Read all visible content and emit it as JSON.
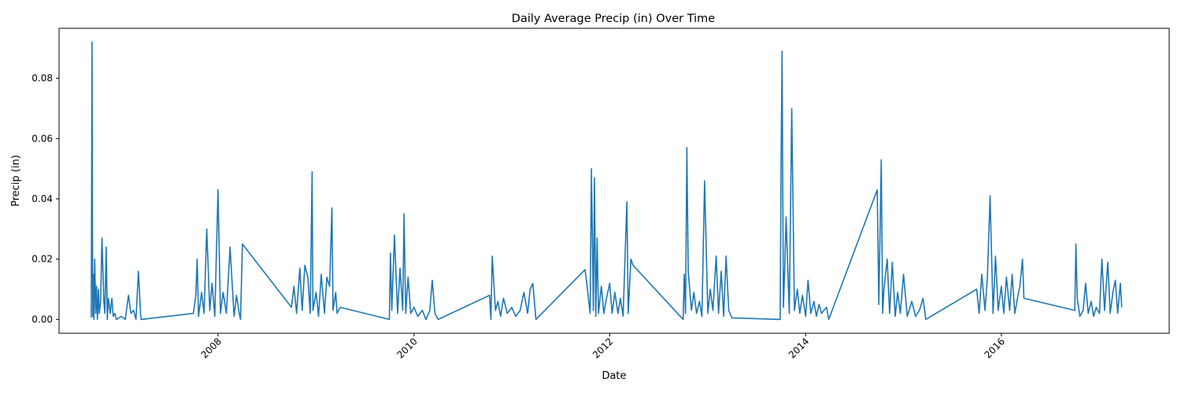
{
  "chart_data": {
    "type": "line",
    "title": "Daily Average Precip (in) Over Time",
    "xlabel": "Date",
    "ylabel": "Precip (in)",
    "x_ticks": [
      "2008",
      "2010",
      "2012",
      "2014",
      "2016"
    ],
    "y_ticks": [
      "0.00",
      "0.02",
      "0.04",
      "0.06",
      "0.08"
    ],
    "y_tick_values": [
      0,
      0.02,
      0.04,
      0.06,
      0.08
    ],
    "xlim": [
      "2006-05-18",
      "2017-09-18"
    ],
    "ylim": [
      -0.0046,
      0.0966
    ],
    "grid": false,
    "legend": "none",
    "line_color": "#1f77b4",
    "series": [
      {
        "x": [
          "2006-09-15",
          "2006-09-18",
          "2006-09-20",
          "2006-09-21",
          "2006-09-23",
          "2006-09-25",
          "2006-09-28",
          "2006-10-02",
          "2006-10-05",
          "2006-10-08",
          "2006-10-12",
          "2006-10-15",
          "2006-10-20",
          "2006-10-25",
          "2006-11-01",
          "2006-11-05",
          "2006-11-10",
          "2006-11-14",
          "2006-11-18",
          "2006-11-25",
          "2006-12-01",
          "2006-12-06",
          "2006-12-12",
          "2006-12-18",
          "2007-01-05",
          "2007-01-20",
          "2007-02-01",
          "2007-02-10",
          "2007-02-20",
          "2007-03-01",
          "2007-03-10",
          "2007-03-18",
          "2007-03-20",
          "2007-10-01",
          "2007-10-10",
          "2007-10-15",
          "2007-10-20",
          "2007-11-01",
          "2007-11-10",
          "2007-11-20",
          "2007-12-01",
          "2007-12-10",
          "2007-12-20",
          "2008-01-01",
          "2008-01-10",
          "2008-01-20",
          "2008-02-01",
          "2008-02-15",
          "2008-03-01",
          "2008-03-10",
          "2008-03-20",
          "2008-03-25",
          "2008-04-01",
          "2008-10-01",
          "2008-10-10",
          "2008-10-20",
          "2008-11-01",
          "2008-11-10",
          "2008-11-20",
          "2008-12-01",
          "2008-12-10",
          "2008-12-17",
          "2008-12-20",
          "2009-01-01",
          "2009-01-10",
          "2009-01-20",
          "2009-02-01",
          "2009-02-10",
          "2009-02-20",
          "2009-03-01",
          "2009-03-05",
          "2009-03-15",
          "2009-03-20",
          "2009-04-01",
          "2009-10-01",
          "2009-10-05",
          "2009-10-10",
          "2009-10-20",
          "2009-11-01",
          "2009-11-10",
          "2009-11-20",
          "2009-11-25",
          "2009-12-01",
          "2009-12-10",
          "2009-12-20",
          "2010-01-01",
          "2010-01-15",
          "2010-02-01",
          "2010-02-15",
          "2010-03-01",
          "2010-03-10",
          "2010-03-20",
          "2010-04-01",
          "2010-10-10",
          "2010-10-15",
          "2010-10-20",
          "2010-11-01",
          "2010-11-10",
          "2010-11-20",
          "2010-12-01",
          "2010-12-15",
          "2011-01-01",
          "2011-01-15",
          "2011-02-01",
          "2011-02-15",
          "2011-03-01",
          "2011-03-10",
          "2011-03-20",
          "2011-04-01",
          "2011-10-01",
          "2011-10-10",
          "2011-10-20",
          "2011-10-25",
          "2011-11-01",
          "2011-11-05",
          "2011-11-10",
          "2011-11-15",
          "2011-11-20",
          "2011-12-01",
          "2011-12-10",
          "2011-12-20",
          "2012-01-01",
          "2012-01-10",
          "2012-01-20",
          "2012-02-01",
          "2012-02-10",
          "2012-02-20",
          "2012-03-01",
          "2012-03-05",
          "2012-03-10",
          "2012-03-20",
          "2012-03-28",
          "2012-10-01",
          "2012-10-05",
          "2012-10-10",
          "2012-10-15",
          "2012-10-20",
          "2012-11-01",
          "2012-11-10",
          "2012-11-20",
          "2012-12-01",
          "2012-12-10",
          "2012-12-20",
          "2013-01-01",
          "2013-01-10",
          "2013-01-20",
          "2013-02-01",
          "2013-02-10",
          "2013-02-20",
          "2013-03-01",
          "2013-03-10",
          "2013-03-20",
          "2013-04-01",
          "2013-09-28",
          "2013-10-01",
          "2013-10-05",
          "2013-10-10",
          "2013-10-15",
          "2013-10-20",
          "2013-11-01",
          "2013-11-10",
          "2013-11-20",
          "2013-12-01",
          "2013-12-10",
          "2013-12-20",
          "2014-01-01",
          "2014-01-10",
          "2014-01-20",
          "2014-02-01",
          "2014-02-10",
          "2014-02-20",
          "2014-03-01",
          "2014-03-10",
          "2014-03-20",
          "2014-03-28",
          "2014-09-25",
          "2014-10-01",
          "2014-10-10",
          "2014-10-15",
          "2014-10-20",
          "2014-11-01",
          "2014-11-10",
          "2014-11-20",
          "2014-12-01",
          "2014-12-10",
          "2014-12-20",
          "2015-01-01",
          "2015-01-15",
          "2015-02-01",
          "2015-02-15",
          "2015-03-01",
          "2015-03-15",
          "2015-03-25",
          "2015-10-01",
          "2015-10-10",
          "2015-10-20",
          "2015-11-01",
          "2015-11-10",
          "2015-11-20",
          "2015-12-01",
          "2015-12-10",
          "2015-12-20",
          "2016-01-01",
          "2016-01-10",
          "2016-01-20",
          "2016-02-01",
          "2016-02-10",
          "2016-02-20",
          "2016-03-01",
          "2016-03-10",
          "2016-03-20",
          "2016-03-25",
          "2016-10-01",
          "2016-10-05",
          "2016-10-10",
          "2016-10-20",
          "2016-11-01",
          "2016-11-10",
          "2016-11-20",
          "2016-12-01",
          "2016-12-10",
          "2016-12-20",
          "2017-01-01",
          "2017-01-10",
          "2017-01-20",
          "2017-02-01",
          "2017-02-10",
          "2017-02-20",
          "2017-03-01",
          "2017-03-10",
          "2017-03-20",
          "2017-03-25"
        ],
        "y": [
          0.0005,
          0.092,
          0.017,
          0.001,
          0.015,
          0.0,
          0.02,
          0.002,
          0.011,
          0.0,
          0.01,
          0.002,
          0.006,
          0.027,
          0.006,
          0.002,
          0.024,
          0.0,
          0.007,
          0.002,
          0.007,
          0.001,
          0.002,
          0.0,
          0.001,
          0.0,
          0.008,
          0.002,
          0.003,
          0.0,
          0.016,
          0.002,
          0.0,
          0.002,
          0.008,
          0.02,
          0.001,
          0.009,
          0.002,
          0.03,
          0.003,
          0.012,
          0.001,
          0.043,
          0.002,
          0.009,
          0.002,
          0.024,
          0.001,
          0.008,
          0.002,
          0.0,
          0.025,
          0.004,
          0.011,
          0.002,
          0.017,
          0.003,
          0.018,
          0.014,
          0.002,
          0.049,
          0.003,
          0.009,
          0.001,
          0.015,
          0.002,
          0.014,
          0.011,
          0.037,
          0.003,
          0.009,
          0.002,
          0.004,
          0.0,
          0.022,
          0.003,
          0.028,
          0.002,
          0.017,
          0.003,
          0.035,
          0.002,
          0.014,
          0.002,
          0.004,
          0.001,
          0.003,
          0.0,
          0.003,
          0.013,
          0.002,
          0.0,
          0.008,
          0.0,
          0.021,
          0.003,
          0.006,
          0.001,
          0.007,
          0.002,
          0.004,
          0.001,
          0.003,
          0.009,
          0.002,
          0.01,
          0.012,
          0.0,
          0.0165,
          0.01,
          0.002,
          0.05,
          0.003,
          0.047,
          0.001,
          0.027,
          0.002,
          0.011,
          0.002,
          0.007,
          0.012,
          0.002,
          0.009,
          0.002,
          0.007,
          0.001,
          0.028,
          0.039,
          0.002,
          0.02,
          0.018,
          0.0,
          0.015,
          0.002,
          0.057,
          0.016,
          0.003,
          0.009,
          0.002,
          0.006,
          0.001,
          0.046,
          0.002,
          0.01,
          0.003,
          0.021,
          0.002,
          0.016,
          0.001,
          0.021,
          0.003,
          0.0005,
          0.0,
          0.05,
          0.089,
          0.004,
          0.017,
          0.034,
          0.002,
          0.07,
          0.003,
          0.01,
          0.002,
          0.008,
          0.001,
          0.013,
          0.002,
          0.006,
          0.001,
          0.005,
          0.002,
          0.003,
          0.004,
          0.0,
          0.043,
          0.005,
          0.053,
          0.002,
          0.01,
          0.02,
          0.002,
          0.019,
          0.001,
          0.009,
          0.002,
          0.015,
          0.001,
          0.006,
          0.001,
          0.003,
          0.007,
          0.0,
          0.01,
          0.002,
          0.015,
          0.003,
          0.014,
          0.041,
          0.002,
          0.021,
          0.003,
          0.011,
          0.002,
          0.014,
          0.003,
          0.015,
          0.002,
          0.007,
          0.011,
          0.02,
          0.007,
          0.003,
          0.025,
          0.007,
          0.001,
          0.003,
          0.012,
          0.002,
          0.006,
          0.001,
          0.004,
          0.002,
          0.02,
          0.003,
          0.019,
          0.002,
          0.009,
          0.013,
          0.002,
          0.012,
          0.004
        ]
      }
    ]
  }
}
